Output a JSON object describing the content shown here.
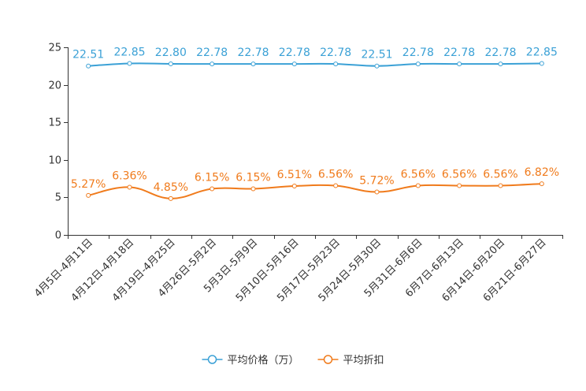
{
  "chart_data": {
    "type": "line",
    "title": "",
    "xlabel": "",
    "ylabel": "",
    "ylim": [
      0,
      25
    ],
    "yticks": [
      0,
      5,
      10,
      15,
      20,
      25
    ],
    "grid": false,
    "legend_position": "bottom-center",
    "categories": [
      "4月5日-4月11日",
      "4月12日-4月18日",
      "4月19日-4月25日",
      "4月26日-5月2日",
      "5月3日-5月9日",
      "5月10日-5月16日",
      "5月17日-5月23日",
      "5月24日-5月30日",
      "5月31日-6月6日",
      "6月7日-6月13日",
      "6月14日-6月20日",
      "6月21日-6月27日"
    ],
    "series": [
      {
        "name": "平均价格（万）",
        "color": "#3ba1d6",
        "values": [
          22.51,
          22.85,
          22.8,
          22.78,
          22.78,
          22.78,
          22.78,
          22.51,
          22.78,
          22.78,
          22.78,
          22.85
        ],
        "labels": [
          "22.51",
          "22.85",
          "22.80",
          "22.78",
          "22.78",
          "22.78",
          "22.78",
          "22.51",
          "22.78",
          "22.78",
          "22.78",
          "22.85"
        ]
      },
      {
        "name": "平均折扣",
        "color": "#f07b1c",
        "values": [
          5.27,
          6.36,
          4.85,
          6.15,
          6.15,
          6.51,
          6.56,
          5.72,
          6.56,
          6.56,
          6.56,
          6.82
        ],
        "labels": [
          "5.27%",
          "6.36%",
          "4.85%",
          "6.15%",
          "6.15%",
          "6.51%",
          "6.56%",
          "5.72%",
          "6.56%",
          "6.56%",
          "6.56%",
          "6.82%"
        ]
      }
    ]
  }
}
